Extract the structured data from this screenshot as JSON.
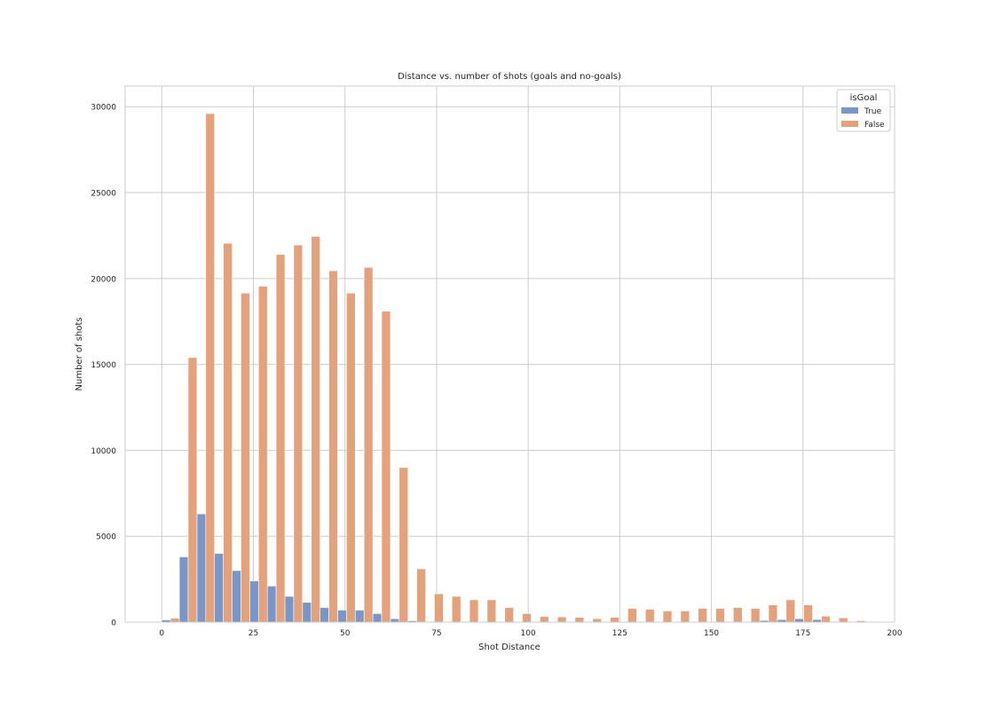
{
  "chart_data": {
    "type": "bar",
    "title": "Distance vs. number of shots (goals and no-goals)",
    "xlabel": "Shot Distance",
    "ylabel": "Number of shots",
    "xlim": [
      -10,
      200
    ],
    "ylim": [
      0,
      31200
    ],
    "xticks": [
      0,
      25,
      50,
      75,
      100,
      125,
      150,
      175,
      200
    ],
    "yticks": [
      0,
      5000,
      10000,
      15000,
      20000,
      25000,
      30000
    ],
    "grid": true,
    "bin_width": 4.8,
    "legend": {
      "title": "isGoal",
      "position": "top-right"
    },
    "x": [
      0,
      4.8,
      9.6,
      14.4,
      19.2,
      24,
      28.8,
      33.6,
      38.4,
      43.2,
      48,
      52.8,
      57.6,
      62.4,
      67.2,
      72,
      76.8,
      81.6,
      86.4,
      91.2,
      96,
      100.8,
      105.6,
      110.4,
      115.2,
      120,
      124.8,
      129.6,
      134.4,
      139.2,
      144,
      148.8,
      153.6,
      158.4,
      163.2,
      168,
      172.8,
      177.6,
      182.4,
      187.2,
      192
    ],
    "series": [
      {
        "name": "True",
        "color": "#7896c8",
        "values": [
          130,
          3800,
          6300,
          4000,
          3000,
          2400,
          2100,
          1500,
          1150,
          850,
          700,
          700,
          500,
          200,
          80,
          0,
          0,
          0,
          0,
          0,
          0,
          0,
          0,
          0,
          0,
          0,
          0,
          0,
          0,
          0,
          0,
          0,
          0,
          0,
          100,
          150,
          200,
          150,
          0,
          0,
          0
        ]
      },
      {
        "name": "False",
        "color": "#e4a27c",
        "values": [
          230,
          15400,
          29600,
          22050,
          19150,
          19550,
          21400,
          21950,
          22450,
          20450,
          19150,
          20650,
          18100,
          9000,
          3100,
          1650,
          1500,
          1300,
          1300,
          850,
          500,
          330,
          300,
          280,
          200,
          280,
          800,
          750,
          650,
          650,
          800,
          800,
          850,
          800,
          1000,
          1300,
          1000,
          350,
          250,
          80,
          0
        ]
      }
    ]
  }
}
